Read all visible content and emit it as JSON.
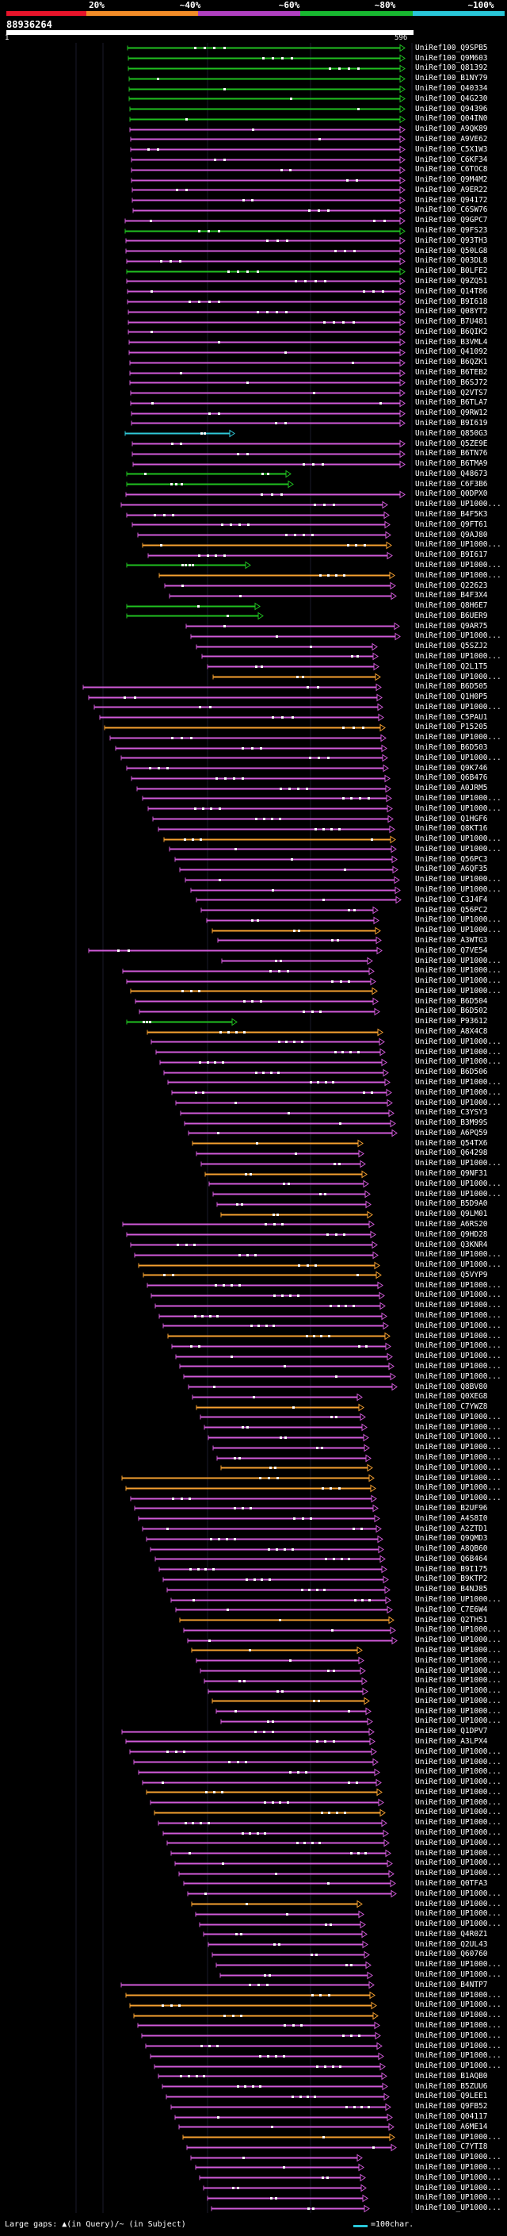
{
  "legend": {
    "segments": [
      {
        "color": "#e8142a"
      },
      {
        "color": "#f28c28"
      },
      {
        "color": "#b040c0"
      },
      {
        "color": "#18b830"
      },
      {
        "color": "#29c6d8"
      }
    ],
    "labels": [
      "20%",
      "~40%",
      "~60%",
      "~80%",
      "~100%"
    ]
  },
  "header": {
    "seq_id": "88936264",
    "ruler_start": "1",
    "ruler_end": "596"
  },
  "footer": {
    "gaps_key": "Large gaps: ▲(in Query)/~ (in Subject)",
    "scale_label": "=100char."
  },
  "colors": {
    "purple": "#d05ad8",
    "orange": "#f5a030",
    "green": "#20c020",
    "cyan": "#30c8d8",
    "dot": "#ffffff"
  },
  "hits": [
    {
      "label": "UniRef100_Q9SPB5",
      "color": "green"
    },
    {
      "label": "UniRef100_Q9M603",
      "color": "green"
    },
    {
      "label": "UniRef100_Q81392",
      "color": "green"
    },
    {
      "label": "UniRef100_B1NY79",
      "color": "green"
    },
    {
      "label": "UniRef100_Q40334",
      "color": "green"
    },
    {
      "label": "UniRef100_Q4G230",
      "color": "green"
    },
    {
      "label": "UniRef100_Q94396",
      "color": "green"
    },
    {
      "label": "UniRef100_Q04IN0",
      "color": "green"
    },
    {
      "label": "UniRef100_A9QK89",
      "color": "purple"
    },
    {
      "label": "UniRef100_A9VE62",
      "color": "purple"
    },
    {
      "label": "UniRef100_C5X1W3",
      "color": "purple"
    },
    {
      "label": "UniRef100_C6KF34",
      "color": "purple"
    },
    {
      "label": "UniRef100_C6TOC8",
      "color": "purple"
    },
    {
      "label": "UniRef100_Q9M4M2",
      "color": "purple"
    },
    {
      "label": "UniRef100_A9ER22",
      "color": "purple"
    },
    {
      "label": "UniRef100_Q94172",
      "color": "purple"
    },
    {
      "label": "UniRef100_C6SW76",
      "color": "purple"
    },
    {
      "label": "UniRef100_Q9GPC7",
      "color": "purple"
    },
    {
      "label": "UniRef100_Q9FS23",
      "color": "green"
    },
    {
      "label": "UniRef100_Q93TH3",
      "color": "purple"
    },
    {
      "label": "UniRef100_Q50LG8",
      "color": "purple"
    },
    {
      "label": "UniRef100_Q03DL8",
      "color": "purple"
    },
    {
      "label": "UniRef100_B0LFE2",
      "color": "green"
    },
    {
      "label": "UniRef100_Q9ZQ51",
      "color": "purple"
    },
    {
      "label": "UniRef100_Q14T86",
      "color": "purple"
    },
    {
      "label": "UniRef100_B9I618",
      "color": "purple"
    },
    {
      "label": "UniRef100_Q08YT2",
      "color": "purple"
    },
    {
      "label": "UniRef100_B7U481",
      "color": "purple"
    },
    {
      "label": "UniRef100_B6QIK2",
      "color": "purple"
    },
    {
      "label": "UniRef100_B3VML4",
      "color": "purple"
    },
    {
      "label": "UniRef100_Q41092",
      "color": "purple"
    },
    {
      "label": "UniRef100_B6QZK1",
      "color": "purple"
    },
    {
      "label": "UniRef100_B6TEB2",
      "color": "purple"
    },
    {
      "label": "UniRef100_B6SJ72",
      "color": "purple"
    },
    {
      "label": "UniRef100_Q2VTS7",
      "color": "purple"
    },
    {
      "label": "UniRef100_B6TLA7",
      "color": "purple"
    },
    {
      "label": "UniRef100_Q9RW12",
      "color": "purple"
    },
    {
      "label": "UniRef100_B9I619",
      "color": "purple"
    },
    {
      "label": "UniRef100_Q850G3",
      "color": "cyan"
    },
    {
      "label": "UniRef100_Q5ZE9E",
      "color": "purple"
    },
    {
      "label": "UniRef100_B6TN76",
      "color": "purple"
    },
    {
      "label": "UniRef100_B6TMA9",
      "color": "purple"
    },
    {
      "label": "UniRef100_Q48673",
      "color": "green"
    },
    {
      "label": "UniRef100_C6F3B6",
      "color": "green"
    },
    {
      "label": "UniRef100_Q0DPX0",
      "color": "purple"
    },
    {
      "label": "UniRef100_UP1000...",
      "color": "purple"
    },
    {
      "label": "UniRef100_B4F5K3",
      "color": "purple"
    },
    {
      "label": "UniRef100_Q9FT61",
      "color": "purple"
    },
    {
      "label": "UniRef100_Q9AJ80",
      "color": "purple"
    },
    {
      "label": "UniRef100_UP1000...",
      "color": "orange"
    },
    {
      "label": "UniRef100_B9I617",
      "color": "purple"
    },
    {
      "label": "UniRef100_UP1000...",
      "color": "green"
    },
    {
      "label": "UniRef100_UP1000...",
      "color": "orange"
    },
    {
      "label": "UniRef100_Q22623",
      "color": "purple"
    },
    {
      "label": "UniRef100_B4F3X4",
      "color": "purple"
    },
    {
      "label": "UniRef100_Q8H6E7",
      "color": "green"
    },
    {
      "label": "UniRef100_B6UER9",
      "color": "green"
    },
    {
      "label": "UniRef100_Q9AR75",
      "color": "purple"
    },
    {
      "label": "UniRef100_UP1000...",
      "color": "purple"
    },
    {
      "label": "UniRef100_Q5SZJ2",
      "color": "purple"
    },
    {
      "label": "UniRef100_UP1000...",
      "color": "purple"
    },
    {
      "label": "UniRef100_Q2L1T5",
      "color": "purple"
    },
    {
      "label": "UniRef100_UP1000...",
      "color": "orange"
    },
    {
      "label": "UniRef100_B6D505",
      "color": "purple"
    },
    {
      "label": "UniRef100_Q1H0P5",
      "color": "purple"
    },
    {
      "label": "UniRef100_UP1000...",
      "color": "purple"
    },
    {
      "label": "UniRef100_C5PAU1",
      "color": "purple"
    },
    {
      "label": "UniRef100_P15205",
      "color": "orange"
    },
    {
      "label": "UniRef100_UP1000...",
      "color": "purple"
    },
    {
      "label": "UniRef100_B6D503",
      "color": "purple"
    },
    {
      "label": "UniRef100_UP1000...",
      "color": "purple"
    },
    {
      "label": "UniRef100_Q9K746",
      "color": "purple"
    },
    {
      "label": "UniRef100_Q6B476",
      "color": "purple"
    },
    {
      "label": "UniRef100_A0JRM5",
      "color": "purple"
    },
    {
      "label": "UniRef100_UP1000...",
      "color": "purple"
    },
    {
      "label": "UniRef100_UP1000...",
      "color": "purple"
    },
    {
      "label": "UniRef100_Q1HGF6",
      "color": "purple"
    },
    {
      "label": "UniRef100_Q8KT16",
      "color": "purple"
    },
    {
      "label": "UniRef100_UP1000...",
      "color": "orange"
    },
    {
      "label": "UniRef100_UP1000...",
      "color": "purple"
    },
    {
      "label": "UniRef100_Q56PC3",
      "color": "purple"
    },
    {
      "label": "UniRef100_A6QF35",
      "color": "purple"
    },
    {
      "label": "UniRef100_UP1000...",
      "color": "purple"
    },
    {
      "label": "UniRef100_UP1000...",
      "color": "purple"
    },
    {
      "label": "UniRef100_C3J4F4",
      "color": "purple"
    },
    {
      "label": "UniRef100_Q56PC2",
      "color": "purple"
    },
    {
      "label": "UniRef100_UP1000...",
      "color": "purple"
    },
    {
      "label": "UniRef100_UP1000...",
      "color": "orange"
    },
    {
      "label": "UniRef100_A3WTG3",
      "color": "purple"
    },
    {
      "label": "UniRef100_Q7VE54",
      "color": "purple"
    },
    {
      "label": "UniRef100_UP1000...",
      "color": "purple"
    },
    {
      "label": "UniRef100_UP1000...",
      "color": "purple"
    },
    {
      "label": "UniRef100_UP1000...",
      "color": "purple"
    },
    {
      "label": "UniRef100_UP1000...",
      "color": "orange"
    },
    {
      "label": "UniRef100_B6D504",
      "color": "purple"
    },
    {
      "label": "UniRef100_B6D502",
      "color": "purple"
    },
    {
      "label": "UniRef100_P93612",
      "color": "green"
    },
    {
      "label": "UniRef100_A8X4C8",
      "color": "orange"
    },
    {
      "label": "UniRef100_UP1000...",
      "color": "purple"
    },
    {
      "label": "UniRef100_UP1000...",
      "color": "purple"
    },
    {
      "label": "UniRef100_UP1000...",
      "color": "purple"
    },
    {
      "label": "UniRef100_B6D506",
      "color": "purple"
    },
    {
      "label": "UniRef100_UP1000...",
      "color": "purple"
    },
    {
      "label": "UniRef100_UP1000...",
      "color": "purple"
    },
    {
      "label": "UniRef100_UP1000...",
      "color": "purple"
    },
    {
      "label": "UniRef100_C3YSY3",
      "color": "purple"
    },
    {
      "label": "UniRef100_B3M99S",
      "color": "purple"
    },
    {
      "label": "UniRef100_A6PQ59",
      "color": "purple"
    },
    {
      "label": "UniRef100_Q54TX6",
      "color": "orange"
    },
    {
      "label": "UniRef100_Q64298",
      "color": "purple"
    },
    {
      "label": "UniRef100_UP1000...",
      "color": "purple"
    },
    {
      "label": "UniRef100_Q9NF31",
      "color": "orange"
    },
    {
      "label": "UniRef100_UP1000...",
      "color": "purple"
    },
    {
      "label": "UniRef100_UP1000...",
      "color": "purple"
    },
    {
      "label": "UniRef100_B5D9A0",
      "color": "purple"
    },
    {
      "label": "UniRef100_Q9LM01",
      "color": "orange"
    },
    {
      "label": "UniRef100_A6RS20",
      "color": "purple"
    },
    {
      "label": "UniRef100_Q9HD28",
      "color": "purple"
    },
    {
      "label": "UniRef100_Q3KNR4",
      "color": "purple"
    },
    {
      "label": "UniRef100_UP1000...",
      "color": "purple"
    },
    {
      "label": "UniRef100_UP1000...",
      "color": "orange"
    },
    {
      "label": "UniRef100_Q5VYP9",
      "color": "orange"
    },
    {
      "label": "UniRef100_UP1000...",
      "color": "purple"
    },
    {
      "label": "UniRef100_UP1000...",
      "color": "purple"
    },
    {
      "label": "UniRef100_UP1000...",
      "color": "purple"
    },
    {
      "label": "UniRef100_UP1000...",
      "color": "purple"
    },
    {
      "label": "UniRef100_UP1000...",
      "color": "purple"
    },
    {
      "label": "UniRef100_UP1000...",
      "color": "orange"
    },
    {
      "label": "UniRef100_UP1000...",
      "color": "purple"
    },
    {
      "label": "UniRef100_UP1000...",
      "color": "purple"
    },
    {
      "label": "UniRef100_UP1000...",
      "color": "purple"
    },
    {
      "label": "UniRef100_UP1000...",
      "color": "purple"
    },
    {
      "label": "UniRef100_Q8BV80",
      "color": "purple"
    },
    {
      "label": "UniRef100_Q0XEG8",
      "color": "purple"
    },
    {
      "label": "UniRef100_C7YWZ8",
      "color": "orange"
    },
    {
      "label": "UniRef100_UP1000...",
      "color": "purple"
    },
    {
      "label": "UniRef100_UP1000...",
      "color": "purple"
    },
    {
      "label": "UniRef100_UP1000...",
      "color": "purple"
    },
    {
      "label": "UniRef100_UP1000...",
      "color": "purple"
    },
    {
      "label": "UniRef100_UP1000...",
      "color": "purple"
    },
    {
      "label": "UniRef100_UP1000...",
      "color": "orange"
    },
    {
      "label": "UniRef100_UP1000...",
      "color": "orange"
    },
    {
      "label": "UniRef100_UP1000...",
      "color": "orange"
    },
    {
      "label": "UniRef100_UP1000...",
      "color": "purple"
    },
    {
      "label": "UniRef100_B2UF96",
      "color": "purple"
    },
    {
      "label": "UniRef100_A4S8I0",
      "color": "purple"
    },
    {
      "label": "UniRef100_A2ZTD1",
      "color": "purple"
    },
    {
      "label": "UniRef100_Q9QMD3",
      "color": "purple"
    },
    {
      "label": "UniRef100_A8QB60",
      "color": "purple"
    },
    {
      "label": "UniRef100_Q6B464",
      "color": "purple"
    },
    {
      "label": "UniRef100_B9I175",
      "color": "purple"
    },
    {
      "label": "UniRef100_B9KTP2",
      "color": "purple"
    },
    {
      "label": "UniRef100_B4NJ85",
      "color": "purple"
    },
    {
      "label": "UniRef100_UP1000...",
      "color": "purple"
    },
    {
      "label": "UniRef100_C7E6W4",
      "color": "purple"
    },
    {
      "label": "UniRef100_Q2TH51",
      "color": "orange"
    },
    {
      "label": "UniRef100_UP1000...",
      "color": "purple"
    },
    {
      "label": "UniRef100_UP1000...",
      "color": "purple"
    },
    {
      "label": "UniRef100_UP1000...",
      "color": "orange"
    },
    {
      "label": "UniRef100_UP1000...",
      "color": "purple"
    },
    {
      "label": "UniRef100_UP1000...",
      "color": "purple"
    },
    {
      "label": "UniRef100_UP1000...",
      "color": "purple"
    },
    {
      "label": "UniRef100_UP1000...",
      "color": "purple"
    },
    {
      "label": "UniRef100_UP1000...",
      "color": "orange"
    },
    {
      "label": "UniRef100_UP1000...",
      "color": "purple"
    },
    {
      "label": "UniRef100_UP1000...",
      "color": "purple"
    },
    {
      "label": "UniRef100_Q1DPV7",
      "color": "purple"
    },
    {
      "label": "UniRef100_A3LPX4",
      "color": "purple"
    },
    {
      "label": "UniRef100_UP1000...",
      "color": "purple"
    },
    {
      "label": "UniRef100_UP1000...",
      "color": "purple"
    },
    {
      "label": "UniRef100_UP1000...",
      "color": "purple"
    },
    {
      "label": "UniRef100_UP1000...",
      "color": "purple"
    },
    {
      "label": "UniRef100_UP1000...",
      "color": "orange"
    },
    {
      "label": "UniRef100_UP1000...",
      "color": "purple"
    },
    {
      "label": "UniRef100_UP1000...",
      "color": "orange"
    },
    {
      "label": "UniRef100_UP1000...",
      "color": "purple"
    },
    {
      "label": "UniRef100_UP1000...",
      "color": "purple"
    },
    {
      "label": "UniRef100_UP1000...",
      "color": "purple"
    },
    {
      "label": "UniRef100_UP1000...",
      "color": "purple"
    },
    {
      "label": "UniRef100_UP1000...",
      "color": "purple"
    },
    {
      "label": "UniRef100_UP1000...",
      "color": "purple"
    },
    {
      "label": "UniRef100_Q0TFA3",
      "color": "purple"
    },
    {
      "label": "UniRef100_UP1000...",
      "color": "purple"
    },
    {
      "label": "UniRef100_UP1000...",
      "color": "orange"
    },
    {
      "label": "UniRef100_UP1000...",
      "color": "purple"
    },
    {
      "label": "UniRef100_UP1000...",
      "color": "purple"
    },
    {
      "label": "UniRef100_Q4R0Z1",
      "color": "purple"
    },
    {
      "label": "UniRef100_Q2UL43",
      "color": "purple"
    },
    {
      "label": "UniRef100_Q60760",
      "color": "purple"
    },
    {
      "label": "UniRef100_UP1000...",
      "color": "purple"
    },
    {
      "label": "UniRef100_UP1000...",
      "color": "purple"
    },
    {
      "label": "UniRef100_B4NTP7",
      "color": "purple"
    },
    {
      "label": "UniRef100_UP1000...",
      "color": "orange"
    },
    {
      "label": "UniRef100_UP1000...",
      "color": "orange"
    },
    {
      "label": "UniRef100_UP1000...",
      "color": "orange"
    },
    {
      "label": "UniRef100_UP1000...",
      "color": "purple"
    },
    {
      "label": "UniRef100_UP1000...",
      "color": "purple"
    },
    {
      "label": "UniRef100_UP1000...",
      "color": "purple"
    },
    {
      "label": "UniRef100_UP1000...",
      "color": "purple"
    },
    {
      "label": "UniRef100_UP1000...",
      "color": "purple"
    },
    {
      "label": "UniRef100_B1AQB0",
      "color": "purple"
    },
    {
      "label": "UniRef100_B5ZUU6",
      "color": "purple"
    },
    {
      "label": "UniRef100_Q9LEE1",
      "color": "purple"
    },
    {
      "label": "UniRef100_Q9FB52",
      "color": "purple"
    },
    {
      "label": "UniRef100_Q04117",
      "color": "purple"
    },
    {
      "label": "UniRef100_A6ME14",
      "color": "purple"
    },
    {
      "label": "UniRef100_UP1000...",
      "color": "orange"
    },
    {
      "label": "UniRef100_C7YTI8",
      "color": "purple"
    },
    {
      "label": "UniRef100_UP1000...",
      "color": "purple"
    },
    {
      "label": "UniRef100_UP1000...",
      "color": "purple"
    },
    {
      "label": "UniRef100_UP1000...",
      "color": "purple"
    },
    {
      "label": "UniRef100_UP1000...",
      "color": "purple"
    },
    {
      "label": "UniRef100_UP1000...",
      "color": "purple"
    },
    {
      "label": "UniRef100_UP1000...",
      "color": "purple"
    }
  ]
}
